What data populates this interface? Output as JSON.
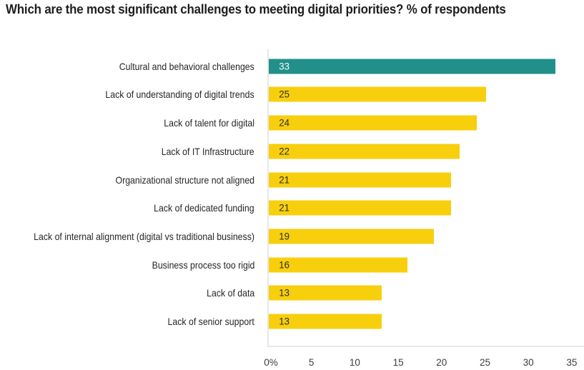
{
  "page": {
    "background": "#FFFFFF"
  },
  "chart_data": {
    "type": "bar",
    "orientation": "horizontal",
    "title": "Which are the most significant challenges to meeting digital priorities? % of respondents",
    "categories": [
      "Cultural and behavioral challenges",
      "Lack of understanding of digital trends",
      "Lack of talent for digital",
      "Lack of IT Infrastructure",
      "Organizational structure not aligned",
      "Lack of dedicated funding",
      "Lack of internal alignment (digital vs traditional business)",
      "Business process too rigid",
      "Lack of data",
      "Lack of senior support"
    ],
    "values": [
      33,
      25,
      24,
      22,
      21,
      21,
      19,
      16,
      13,
      13
    ],
    "value_label_position": "inside-left",
    "xlabel": "",
    "ylabel": "",
    "xlim": [
      0,
      35
    ],
    "x_ticks": [
      0,
      5,
      10,
      15,
      20,
      25,
      30,
      35
    ],
    "x_tick_labels": [
      "0%",
      "5",
      "10",
      "15",
      "20",
      "25",
      "30",
      "35"
    ],
    "grid": false,
    "axis_lines": "left-and-bottom",
    "legend": "none",
    "style": {
      "highlight_index": 0,
      "highlight_bar_color": "#21908A",
      "default_bar_color": "#F7CF0D",
      "highlight_value_text_color": "#FAFAFA",
      "default_value_text_color": "#2E2E2E",
      "axis_line_color": "#E6E8E7",
      "tick_label_color": "#3D3D3D",
      "category_label_color": "#262626",
      "title_color": "#1E1E1E"
    }
  }
}
